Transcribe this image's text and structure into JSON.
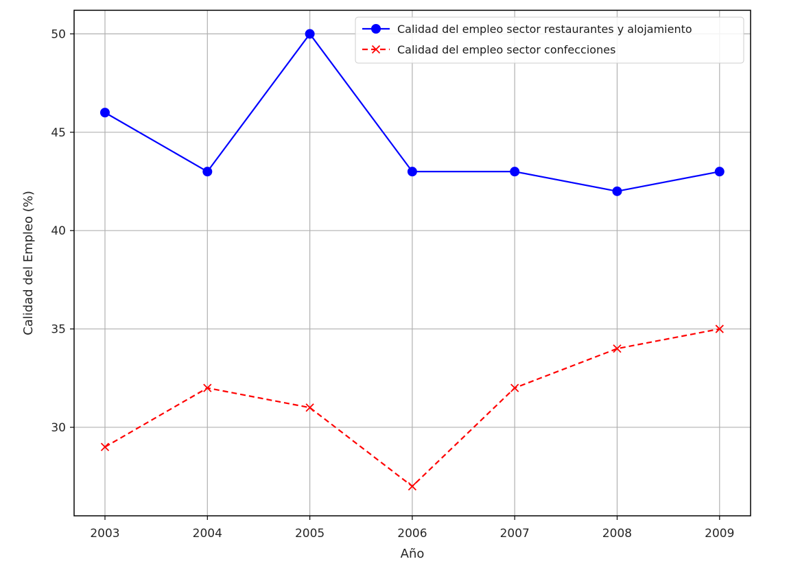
{
  "chart_data": {
    "type": "line",
    "title": "",
    "xlabel": "Año",
    "ylabel": "Calidad del Empleo (%)",
    "x": [
      "2003",
      "2004",
      "2005",
      "2006",
      "2007",
      "2008",
      "2009"
    ],
    "ylim": [
      25.5,
      51.2
    ],
    "yticks": [
      30,
      35,
      40,
      45,
      50
    ],
    "grid": true,
    "legend_position": "top-right",
    "series": [
      {
        "name": "Calidad del empleo sector restaurantes y alojamiento",
        "values": [
          46,
          43,
          50,
          43,
          43,
          42,
          43
        ],
        "color": "#0000ff",
        "line_style": "solid",
        "marker": "circle"
      },
      {
        "name": "Calidad del empleo sector confecciones",
        "values": [
          29,
          32,
          31,
          27,
          32,
          34,
          35
        ],
        "color": "#ff0000",
        "line_style": "dashed",
        "marker": "x"
      }
    ]
  }
}
